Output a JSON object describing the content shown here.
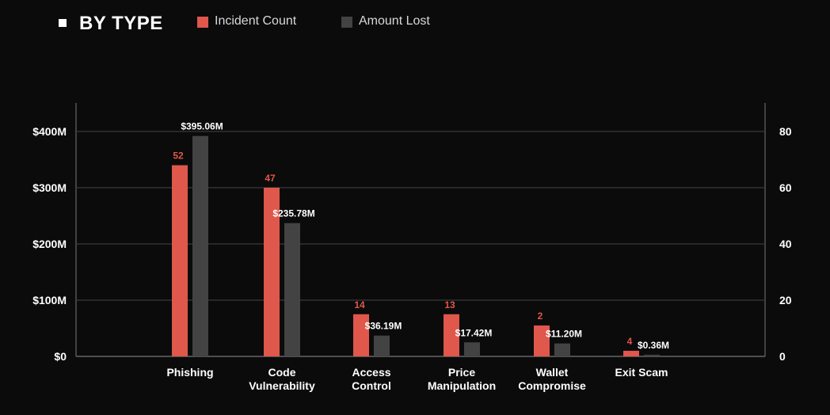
{
  "header": {
    "title": "BY TYPE",
    "legend": [
      {
        "label": "Incident Count",
        "color": "#e0574b"
      },
      {
        "label": "Amount Lost",
        "color": "#434343"
      }
    ]
  },
  "chart_data": {
    "type": "bar",
    "title": "BY TYPE",
    "categories": [
      [
        "Phishing"
      ],
      [
        "Code",
        "Vulnerability"
      ],
      [
        "Access",
        "Control"
      ],
      [
        "Price",
        "Manipulation"
      ],
      [
        "Wallet",
        "Compromise"
      ],
      [
        "Exit Scam"
      ]
    ],
    "series": [
      {
        "name": "Incident Count",
        "axis": "right",
        "color": "#e0574b",
        "values": [
          52,
          47,
          14,
          13,
          2,
          4
        ],
        "labels": [
          "52",
          "47",
          "14",
          "13",
          "2",
          "4"
        ],
        "drawn_values": [
          68,
          60,
          15,
          15,
          11,
          2
        ]
      },
      {
        "name": "Amount Lost",
        "axis": "left",
        "color": "#434343",
        "values": [
          395.06,
          235.78,
          36.19,
          17.42,
          11.2,
          0.36
        ],
        "labels": [
          "$395.06M",
          "$235.78M",
          "$36.19M",
          "$17.42M",
          "$11.20M",
          "$0.36M"
        ],
        "drawn_values": [
          392,
          237,
          37,
          25,
          23,
          3
        ]
      }
    ],
    "y_left": {
      "min": 0,
      "max": 400,
      "ticks": [
        "$0",
        "$100M",
        "$200M",
        "$300M",
        "$400M"
      ]
    },
    "y_right": {
      "min": 0,
      "max": 80,
      "ticks": [
        "0",
        "20",
        "40",
        "60",
        "80"
      ]
    },
    "grid": true,
    "legend_position": "top"
  }
}
